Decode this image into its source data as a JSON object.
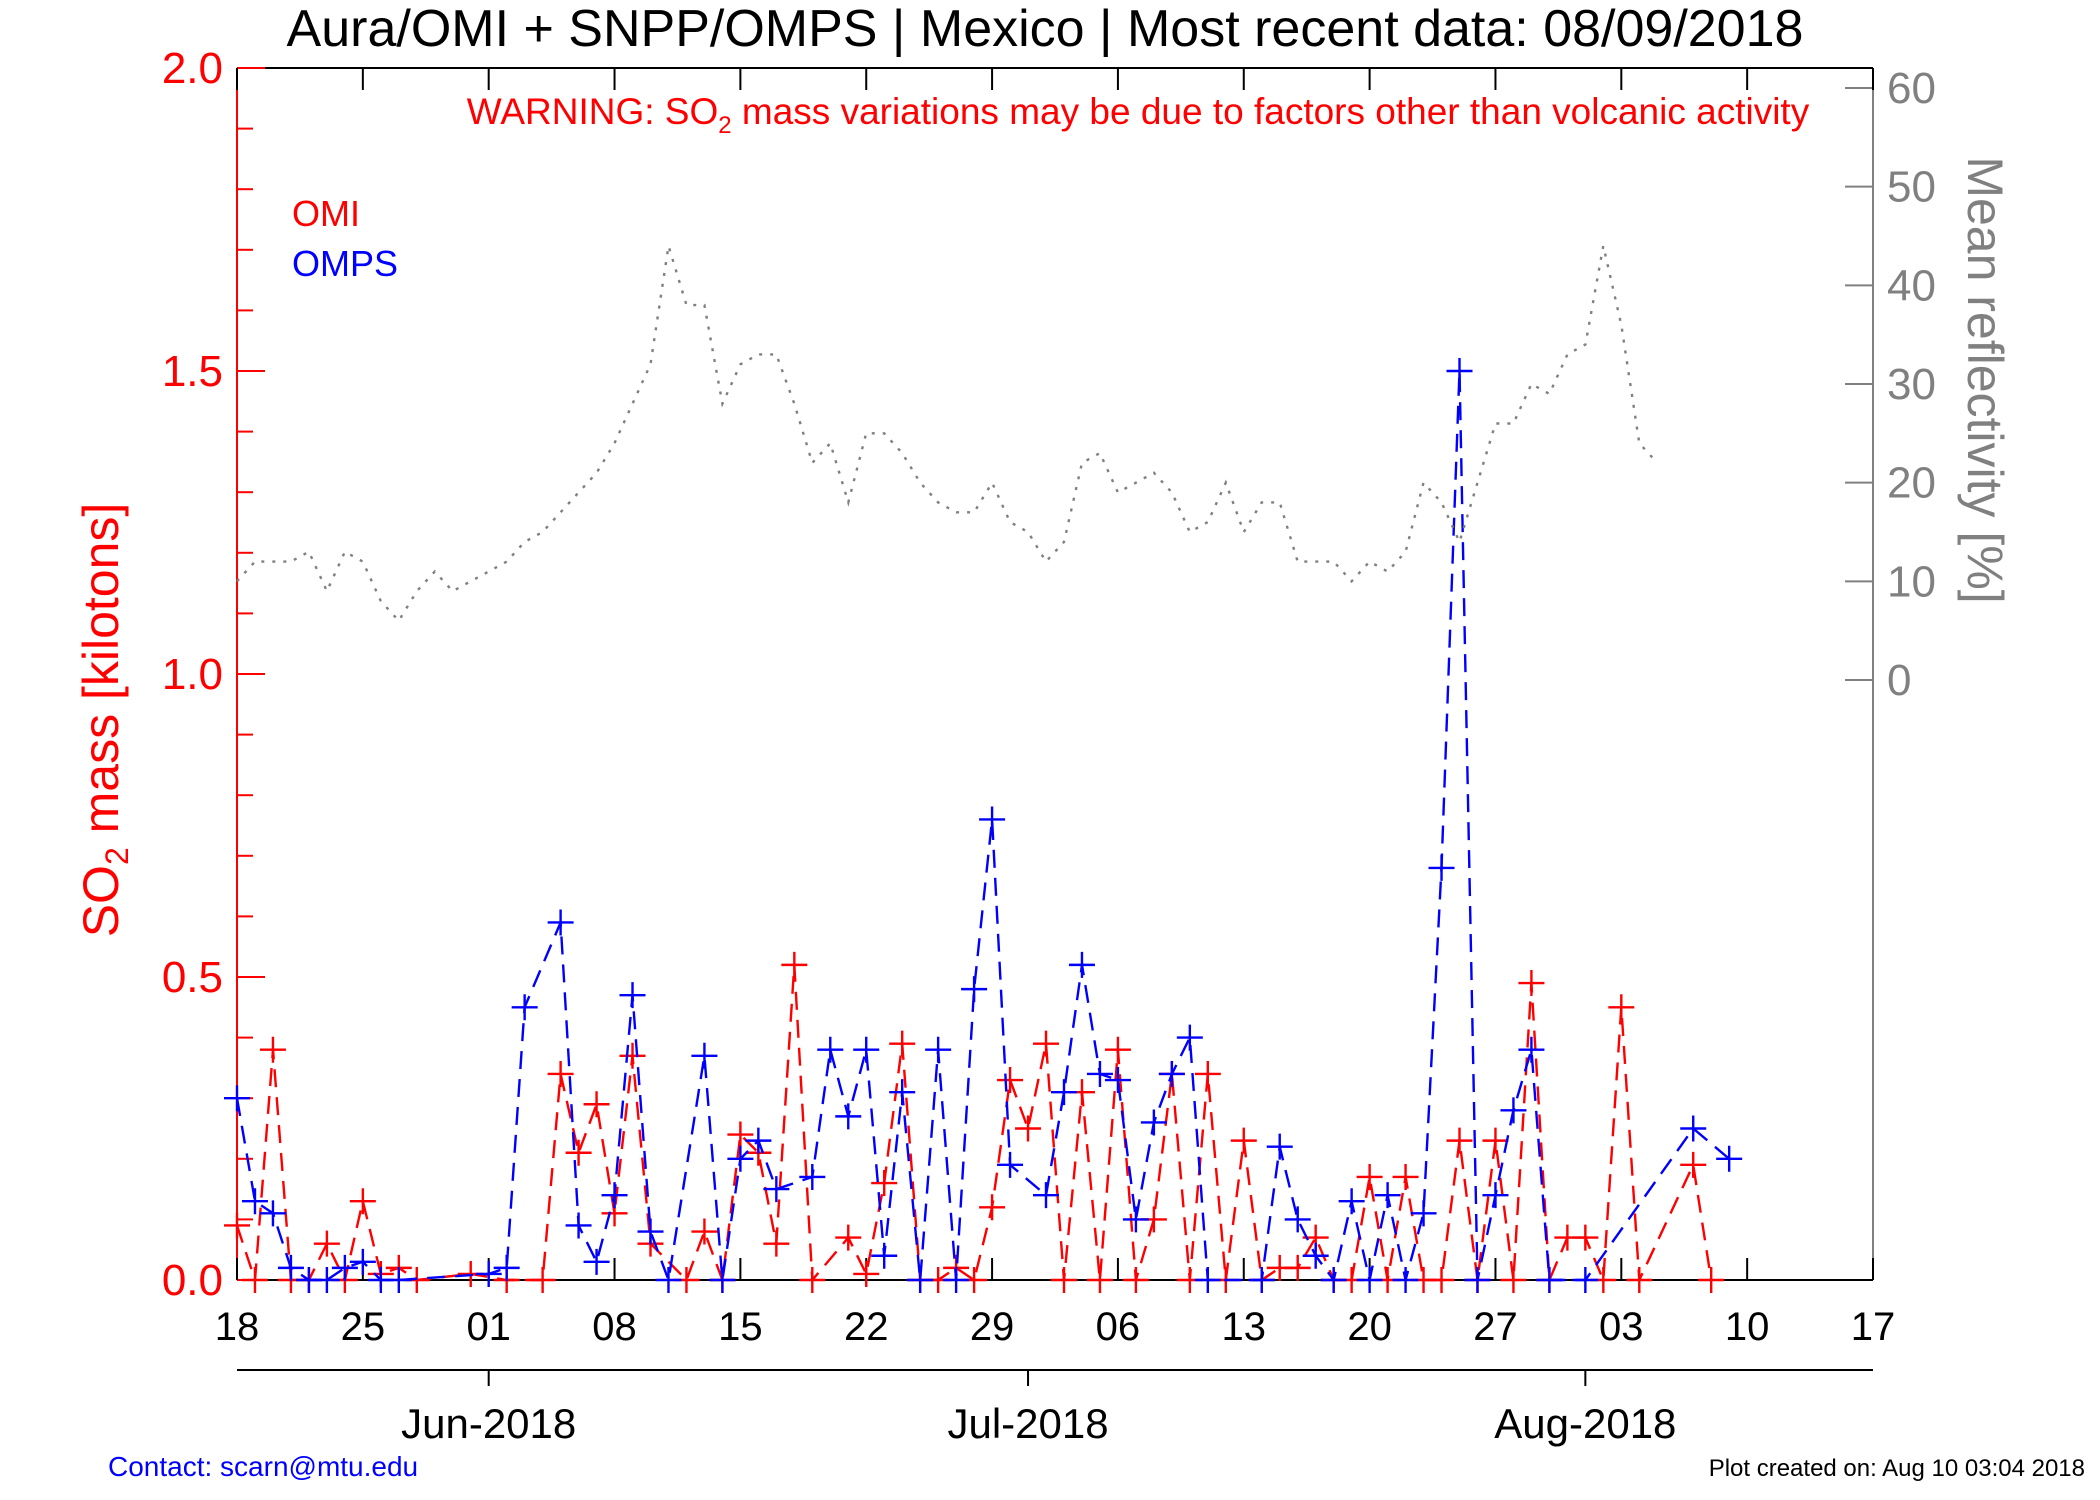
{
  "chart_data": {
    "type": "line",
    "title": "Aura/OMI + SNPP/OMPS | Mexico | Most recent data: 08/09/2018",
    "warning": {
      "prefix": "WARNING: SO",
      "sub": "2",
      "suffix": " mass variations may be due to factors other than volcanic activity"
    },
    "ylabel": {
      "prefix": "SO",
      "sub": "2",
      "suffix": " mass [kilotons]"
    },
    "y2label": "Mean reflectivity [%]",
    "ylim": [
      0,
      2.0
    ],
    "y_ticks": [
      "0.0",
      "0.5",
      "1.0",
      "1.5",
      "2.0"
    ],
    "y2_ticks": [
      "0",
      "10",
      "20",
      "30",
      "40",
      "50",
      "60"
    ],
    "y2_range": [
      0,
      60
    ],
    "x_start": "2018-05-18",
    "x_end": "2018-08-17",
    "x_ticks": [
      {
        "date": "2018-05-18",
        "label": "18"
      },
      {
        "date": "2018-05-25",
        "label": "25"
      },
      {
        "date": "2018-06-01",
        "label": "01"
      },
      {
        "date": "2018-06-08",
        "label": "08"
      },
      {
        "date": "2018-06-15",
        "label": "15"
      },
      {
        "date": "2018-06-22",
        "label": "22"
      },
      {
        "date": "2018-06-29",
        "label": "29"
      },
      {
        "date": "2018-07-06",
        "label": "06"
      },
      {
        "date": "2018-07-13",
        "label": "13"
      },
      {
        "date": "2018-07-20",
        "label": "20"
      },
      {
        "date": "2018-07-27",
        "label": "27"
      },
      {
        "date": "2018-08-03",
        "label": "03"
      },
      {
        "date": "2018-08-10",
        "label": "10"
      },
      {
        "date": "2018-08-17",
        "label": "17"
      }
    ],
    "months": [
      {
        "date": "2018-06-01",
        "label": "Jun-2018"
      },
      {
        "date": "2018-07-01",
        "label": "Jul-2018"
      },
      {
        "date": "2018-08-01",
        "label": "Aug-2018"
      }
    ],
    "legend": [
      {
        "label": "OMI",
        "color": "#ff0000"
      },
      {
        "label": "OMPS",
        "color": "#0000ff"
      }
    ],
    "series": [
      {
        "name": "OMI",
        "color": "#ff0000",
        "style": "dashed",
        "marker": "plus",
        "points": [
          [
            "2018-05-18",
            0.09
          ],
          [
            "2018-05-19",
            0.0
          ],
          [
            "2018-05-20",
            0.38
          ],
          [
            "2018-05-21",
            0.0
          ],
          [
            "2018-05-22",
            0.0
          ],
          [
            "2018-05-23",
            0.06
          ],
          [
            "2018-05-24",
            0.0
          ],
          [
            "2018-05-25",
            0.13
          ],
          [
            "2018-05-26",
            0.01
          ],
          [
            "2018-05-27",
            0.02
          ],
          [
            "2018-05-28",
            0.0
          ],
          [
            "2018-05-31",
            0.01
          ],
          [
            "2018-06-02",
            0.0
          ],
          [
            "2018-06-04",
            0.0
          ],
          [
            "2018-06-05",
            0.34
          ],
          [
            "2018-06-06",
            0.21
          ],
          [
            "2018-06-07",
            0.29
          ],
          [
            "2018-06-08",
            0.11
          ],
          [
            "2018-06-09",
            0.37
          ],
          [
            "2018-06-10",
            0.06
          ],
          [
            "2018-06-12",
            0.0
          ],
          [
            "2018-06-13",
            0.08
          ],
          [
            "2018-06-14",
            0.0
          ],
          [
            "2018-06-15",
            0.24
          ],
          [
            "2018-06-16",
            0.21
          ],
          [
            "2018-06-17",
            0.06
          ],
          [
            "2018-06-18",
            0.52
          ],
          [
            "2018-06-19",
            0.0
          ],
          [
            "2018-06-21",
            0.07
          ],
          [
            "2018-06-22",
            0.01
          ],
          [
            "2018-06-23",
            0.16
          ],
          [
            "2018-06-24",
            0.39
          ],
          [
            "2018-06-25",
            0.0
          ],
          [
            "2018-06-26",
            0.0
          ],
          [
            "2018-06-27",
            0.02
          ],
          [
            "2018-06-28",
            0.0
          ],
          [
            "2018-06-29",
            0.12
          ],
          [
            "2018-06-30",
            0.33
          ],
          [
            "2018-07-01",
            0.25
          ],
          [
            "2018-07-02",
            0.39
          ],
          [
            "2018-07-03",
            0.0
          ],
          [
            "2018-07-04",
            0.31
          ],
          [
            "2018-07-05",
            0.0
          ],
          [
            "2018-07-06",
            0.38
          ],
          [
            "2018-07-07",
            0.0
          ],
          [
            "2018-07-08",
            0.1
          ],
          [
            "2018-07-09",
            0.34
          ],
          [
            "2018-07-10",
            0.0
          ],
          [
            "2018-07-11",
            0.34
          ],
          [
            "2018-07-12",
            0.0
          ],
          [
            "2018-07-13",
            0.23
          ],
          [
            "2018-07-14",
            0.0
          ],
          [
            "2018-07-15",
            0.02
          ],
          [
            "2018-07-16",
            0.02
          ],
          [
            "2018-07-17",
            0.07
          ],
          [
            "2018-07-18",
            0.0
          ],
          [
            "2018-07-19",
            0.0
          ],
          [
            "2018-07-20",
            0.17
          ],
          [
            "2018-07-21",
            0.0
          ],
          [
            "2018-07-22",
            0.17
          ],
          [
            "2018-07-23",
            0.0
          ],
          [
            "2018-07-24",
            0.0
          ],
          [
            "2018-07-25",
            0.23
          ],
          [
            "2018-07-26",
            0.0
          ],
          [
            "2018-07-27",
            0.23
          ],
          [
            "2018-07-28",
            0.0
          ],
          [
            "2018-07-29",
            0.49
          ],
          [
            "2018-07-30",
            0.0
          ],
          [
            "2018-07-31",
            0.07
          ],
          [
            "2018-08-01",
            0.07
          ],
          [
            "2018-08-02",
            0.0
          ],
          [
            "2018-08-03",
            0.45
          ],
          [
            "2018-08-04",
            0.0
          ],
          [
            "2018-08-07",
            0.19
          ],
          [
            "2018-08-08",
            0.0
          ]
        ]
      },
      {
        "name": "OMPS",
        "color": "#0000ff",
        "style": "dashed",
        "marker": "plus",
        "points": [
          [
            "2018-05-18",
            0.3
          ],
          [
            "2018-05-19",
            0.13
          ],
          [
            "2018-05-20",
            0.11
          ],
          [
            "2018-05-21",
            0.02
          ],
          [
            "2018-05-22",
            0.0
          ],
          [
            "2018-05-23",
            0.0
          ],
          [
            "2018-05-24",
            0.02
          ],
          [
            "2018-05-25",
            0.03
          ],
          [
            "2018-05-26",
            0.0
          ],
          [
            "2018-05-27",
            0.0
          ],
          [
            "2018-06-01",
            0.01
          ],
          [
            "2018-06-02",
            0.02
          ],
          [
            "2018-06-03",
            0.45
          ],
          [
            "2018-06-05",
            0.59
          ],
          [
            "2018-06-06",
            0.09
          ],
          [
            "2018-06-07",
            0.03
          ],
          [
            "2018-06-08",
            0.14
          ],
          [
            "2018-06-09",
            0.47
          ],
          [
            "2018-06-10",
            0.08
          ],
          [
            "2018-06-11",
            0.0
          ],
          [
            "2018-06-13",
            0.37
          ],
          [
            "2018-06-14",
            0.0
          ],
          [
            "2018-06-15",
            0.2
          ],
          [
            "2018-06-16",
            0.23
          ],
          [
            "2018-06-17",
            0.15
          ],
          [
            "2018-06-19",
            0.17
          ],
          [
            "2018-06-20",
            0.38
          ],
          [
            "2018-06-21",
            0.27
          ],
          [
            "2018-06-22",
            0.38
          ],
          [
            "2018-06-23",
            0.04
          ],
          [
            "2018-06-24",
            0.31
          ],
          [
            "2018-06-25",
            0.0
          ],
          [
            "2018-06-26",
            0.38
          ],
          [
            "2018-06-27",
            0.0
          ],
          [
            "2018-06-28",
            0.48
          ],
          [
            "2018-06-29",
            0.76
          ],
          [
            "2018-06-30",
            0.19
          ],
          [
            "2018-07-02",
            0.14
          ],
          [
            "2018-07-03",
            0.31
          ],
          [
            "2018-07-04",
            0.52
          ],
          [
            "2018-07-05",
            0.34
          ],
          [
            "2018-07-06",
            0.33
          ],
          [
            "2018-07-07",
            0.1
          ],
          [
            "2018-07-08",
            0.26
          ],
          [
            "2018-07-09",
            0.34
          ],
          [
            "2018-07-10",
            0.4
          ],
          [
            "2018-07-11",
            0.0
          ],
          [
            "2018-07-14",
            0.0
          ],
          [
            "2018-07-15",
            0.22
          ],
          [
            "2018-07-16",
            0.1
          ],
          [
            "2018-07-17",
            0.04
          ],
          [
            "2018-07-18",
            0.0
          ],
          [
            "2018-07-19",
            0.13
          ],
          [
            "2018-07-20",
            0.0
          ],
          [
            "2018-07-21",
            0.14
          ],
          [
            "2018-07-22",
            0.0
          ],
          [
            "2018-07-23",
            0.11
          ],
          [
            "2018-07-24",
            0.68
          ],
          [
            "2018-07-25",
            1.5
          ],
          [
            "2018-07-26",
            0.0
          ],
          [
            "2018-07-27",
            0.14
          ],
          [
            "2018-07-28",
            0.28
          ],
          [
            "2018-07-29",
            0.38
          ],
          [
            "2018-07-30",
            0.0
          ],
          [
            "2018-08-01",
            0.0
          ],
          [
            "2018-08-07",
            0.25
          ],
          [
            "2018-08-09",
            0.2
          ]
        ]
      },
      {
        "name": "Mean reflectivity",
        "color": "#808080",
        "style": "dotted",
        "axis": "right",
        "points": [
          [
            "2018-05-18",
            10
          ],
          [
            "2018-05-19",
            12
          ],
          [
            "2018-05-20",
            12
          ],
          [
            "2018-05-21",
            12
          ],
          [
            "2018-05-22",
            13
          ],
          [
            "2018-05-23",
            9
          ],
          [
            "2018-05-24",
            13
          ],
          [
            "2018-05-25",
            12
          ],
          [
            "2018-05-26",
            8
          ],
          [
            "2018-05-27",
            6
          ],
          [
            "2018-05-28",
            9
          ],
          [
            "2018-05-29",
            11
          ],
          [
            "2018-05-30",
            9
          ],
          [
            "2018-05-31",
            10
          ],
          [
            "2018-06-01",
            11
          ],
          [
            "2018-06-02",
            12
          ],
          [
            "2018-06-03",
            14
          ],
          [
            "2018-06-04",
            15
          ],
          [
            "2018-06-05",
            17
          ],
          [
            "2018-06-06",
            19
          ],
          [
            "2018-06-07",
            21
          ],
          [
            "2018-06-08",
            24
          ],
          [
            "2018-06-09",
            28
          ],
          [
            "2018-06-10",
            32
          ],
          [
            "2018-06-11",
            44
          ],
          [
            "2018-06-12",
            38
          ],
          [
            "2018-06-13",
            38
          ],
          [
            "2018-06-14",
            28
          ],
          [
            "2018-06-15",
            32
          ],
          [
            "2018-06-16",
            33
          ],
          [
            "2018-06-17",
            33
          ],
          [
            "2018-06-18",
            28
          ],
          [
            "2018-06-19",
            22
          ],
          [
            "2018-06-20",
            24
          ],
          [
            "2018-06-21",
            18
          ],
          [
            "2018-06-22",
            25
          ],
          [
            "2018-06-23",
            25
          ],
          [
            "2018-06-24",
            23
          ],
          [
            "2018-06-25",
            20
          ],
          [
            "2018-06-26",
            18
          ],
          [
            "2018-06-27",
            17
          ],
          [
            "2018-06-28",
            17
          ],
          [
            "2018-06-29",
            20
          ],
          [
            "2018-06-30",
            16
          ],
          [
            "2018-07-01",
            15
          ],
          [
            "2018-07-02",
            12
          ],
          [
            "2018-07-03",
            14
          ],
          [
            "2018-07-04",
            22
          ],
          [
            "2018-07-05",
            23
          ],
          [
            "2018-07-06",
            19
          ],
          [
            "2018-07-07",
            20
          ],
          [
            "2018-07-08",
            21
          ],
          [
            "2018-07-09",
            19
          ],
          [
            "2018-07-10",
            15
          ],
          [
            "2018-07-11",
            16
          ],
          [
            "2018-07-12",
            20
          ],
          [
            "2018-07-13",
            15
          ],
          [
            "2018-07-14",
            18
          ],
          [
            "2018-07-15",
            18
          ],
          [
            "2018-07-16",
            12
          ],
          [
            "2018-07-17",
            12
          ],
          [
            "2018-07-18",
            12
          ],
          [
            "2018-07-19",
            10
          ],
          [
            "2018-07-20",
            12
          ],
          [
            "2018-07-21",
            11
          ],
          [
            "2018-07-22",
            13
          ],
          [
            "2018-07-23",
            20
          ],
          [
            "2018-07-24",
            18
          ],
          [
            "2018-07-25",
            14
          ],
          [
            "2018-07-26",
            20
          ],
          [
            "2018-07-27",
            26
          ],
          [
            "2018-07-28",
            26
          ],
          [
            "2018-07-29",
            30
          ],
          [
            "2018-07-30",
            29
          ],
          [
            "2018-07-31",
            33
          ],
          [
            "2018-08-01",
            34
          ],
          [
            "2018-08-02",
            44
          ],
          [
            "2018-08-03",
            36
          ],
          [
            "2018-08-04",
            24
          ],
          [
            "2018-08-05",
            22
          ]
        ]
      }
    ]
  },
  "footer": {
    "contact": "Contact: scarn@mtu.edu",
    "created": "Plot created on: Aug 10 03:04 2018"
  }
}
